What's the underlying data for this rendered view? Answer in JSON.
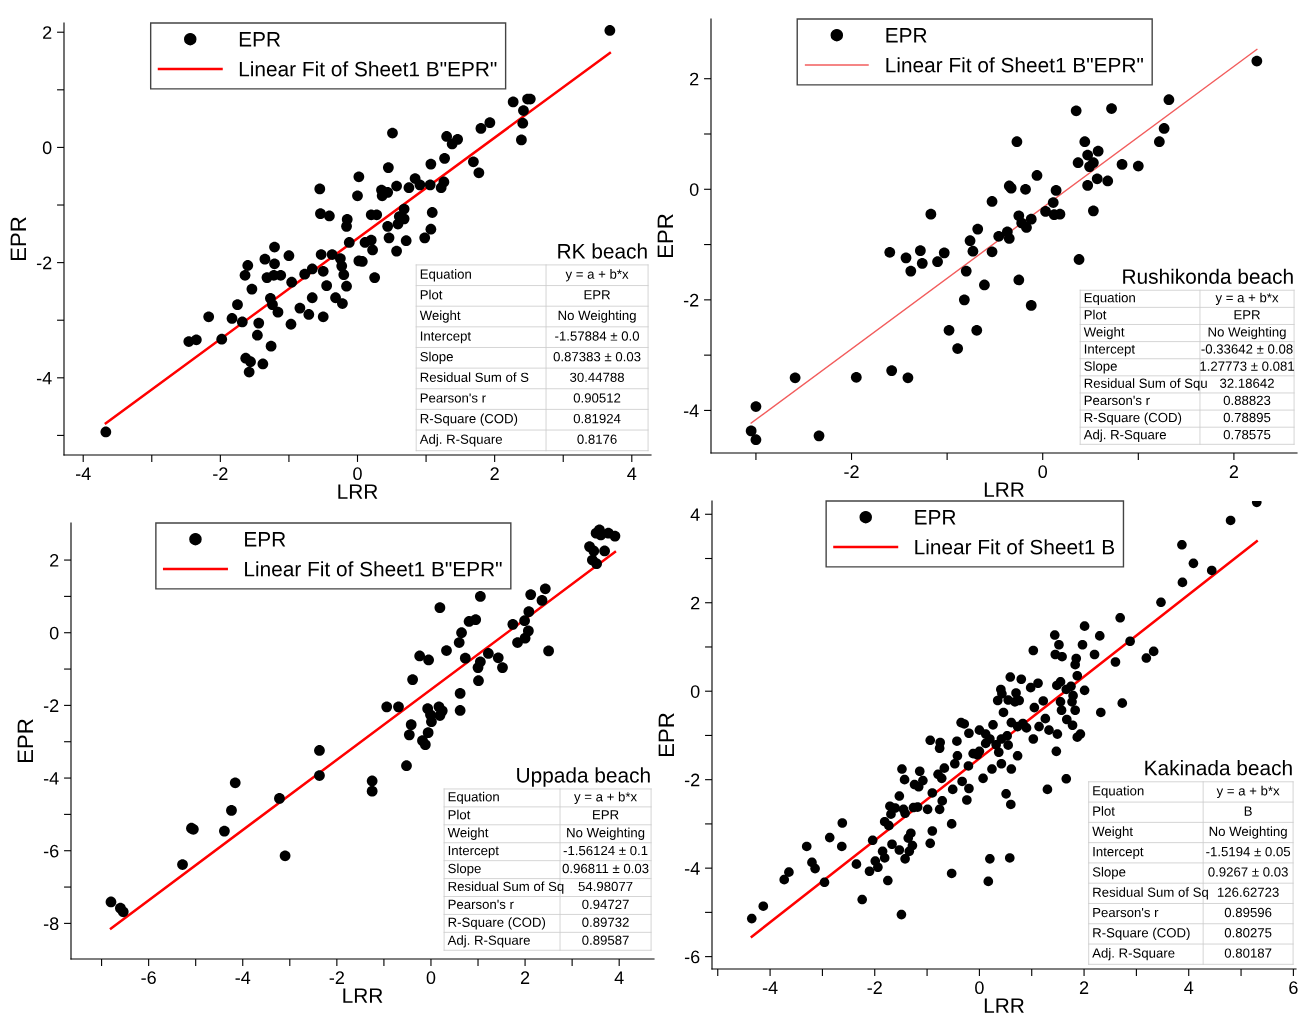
{
  "chart_data": [
    {
      "type": "scatter",
      "xlabel": "LRR",
      "ylabel": "EPR",
      "legend": "top",
      "grid": false,
      "xlim": [
        -4.28,
        4.28
      ],
      "ylim": [
        -5.34,
        2.16
      ],
      "xticks": [
        -4,
        {
          "value": -3,
          "label": null
        },
        -2,
        {
          "value": -1,
          "label": null
        },
        0,
        {
          "value": 1,
          "label": null
        },
        2,
        {
          "value": 3,
          "label": null
        },
        4
      ],
      "yticks": [
        {
          "value": -5,
          "label": null
        },
        -4,
        {
          "value": -3,
          "label": null
        },
        -2,
        {
          "value": -1,
          "label": null
        },
        0,
        {
          "value": 1,
          "label": null
        },
        2
      ],
      "annotations": [
        "RK beach",
        "Equation",
        "y = a + b*x",
        "Plot",
        "EPR",
        "Weight",
        "No Weighting",
        "Intercept",
        "-1.57884 ± 0.0",
        "Slope",
        "0.87383 ± 0.03",
        "Residual Sum of S",
        "30.44788",
        "Pearson's r",
        "0.90512",
        "R-Square (COD)",
        "0.81924",
        "Adj. R-Square",
        "0.8176"
      ],
      "series": [
        {
          "name": "EPR",
          "marker": "circle",
          "color": "#000000",
          "x": [
            -3.67,
            3.68,
            2.27,
            2.48,
            2.52,
            2.42,
            2.41,
            2.39,
            1.8,
            1.93,
            0.51,
            1.3,
            1.38,
            1.46,
            1.27,
            1.07,
            1.69,
            1.77,
            0.45,
            0.02,
            0.0,
            0.84,
            0.91,
            1.06,
            1.26,
            1.22,
            0.57,
            0.75,
            0.35,
            0.44,
            0.36,
            -0.55,
            -0.54,
            -0.41,
            -0.15,
            -0.16,
            0.2,
            0.28,
            0.68,
            0.61,
            0.68,
            0.59,
            1.09,
            1.07,
            0.98,
            0.44,
            0.46,
            0.71,
            0.57,
            -0.12,
            0.11,
            0.2,
            0.22,
            0.02,
            0.07,
            0.25,
            -0.53,
            -0.37,
            -0.25,
            -0.23,
            -0.2,
            -0.16,
            -0.45,
            -0.5,
            -0.66,
            -0.77,
            -0.96,
            -0.66,
            -0.32,
            -0.22,
            -0.84,
            -0.71,
            -0.5,
            -0.97,
            -1.21,
            -1.0,
            -1.21,
            -1.35,
            -1.6,
            -1.64,
            -1.32,
            -1.22,
            -1.12,
            -1.54,
            -1.27,
            -1.24,
            -1.16,
            -1.75,
            -1.83,
            -1.68,
            -1.44,
            -1.46,
            -1.26,
            -2.17,
            -1.98,
            -2.46,
            -2.35,
            -1.63,
            -1.56,
            -1.38,
            -1.58
          ],
          "values": [
            -4.94,
            2.03,
            0.79,
            0.84,
            0.84,
            0.64,
            0.42,
            0.13,
            0.33,
            0.43,
            0.25,
            0.19,
            0.06,
            0.14,
            -0.19,
            -0.29,
            -0.25,
            -0.44,
            -0.35,
            -0.51,
            -0.84,
            -0.54,
            -0.65,
            -0.65,
            -0.6,
            -0.7,
            -0.67,
            -0.7,
            -0.74,
            -0.78,
            -0.84,
            -0.72,
            -1.15,
            -1.19,
            -1.25,
            -1.37,
            -1.17,
            -1.17,
            -1.07,
            -1.2,
            -1.24,
            -1.33,
            -1.13,
            -1.42,
            -1.57,
            -1.37,
            -1.57,
            -1.62,
            -1.8,
            -1.65,
            -1.65,
            -1.61,
            -1.78,
            -1.97,
            -1.98,
            -2.26,
            -1.86,
            -1.86,
            -1.93,
            -2.06,
            -2.21,
            -2.41,
            -2.4,
            -2.15,
            -2.11,
            -2.2,
            -2.34,
            -2.61,
            -2.61,
            -2.71,
            -2.79,
            -2.9,
            -2.94,
            -3.07,
            -1.73,
            -1.88,
            -2.02,
            -1.94,
            -2.05,
            -2.22,
            -2.26,
            -2.22,
            -2.22,
            -2.46,
            -2.62,
            -2.73,
            -2.86,
            -2.73,
            -2.97,
            -3.03,
            -3.05,
            -3.26,
            -3.45,
            -2.94,
            -3.33,
            -3.37,
            -3.34,
            -3.66,
            -3.72,
            -3.76,
            -3.9
          ]
        },
        {
          "name": "Linear Fit of Sheet1 B\"EPR\"",
          "type": "line",
          "color": "#ff0000",
          "x": [
            -3.67,
            3.68
          ],
          "values": [
            -4.79,
            1.64
          ]
        }
      ]
    },
    {
      "type": "scatter",
      "xlabel": "LRR",
      "ylabel": "EPR",
      "legend": "top",
      "grid": false,
      "xlim": [
        -3.47,
        2.66
      ],
      "ylim": [
        -4.77,
        3.08
      ],
      "xticks": [
        {
          "value": -3,
          "label": null
        },
        -2,
        {
          "value": -1,
          "label": null
        },
        0,
        {
          "value": 1,
          "label": null
        },
        2
      ],
      "yticks": [
        -4,
        {
          "value": -3,
          "label": null
        },
        -2,
        {
          "value": -1,
          "label": null
        },
        0,
        {
          "value": 1,
          "label": null
        },
        2
      ],
      "annotations": [
        "Rushikonda beach",
        "Equation",
        "y = a + b*x",
        "Plot",
        "EPR",
        "Weight",
        "No Weighting",
        "Intercept",
        "-0.33642 ± 0.08",
        "Slope",
        "1.27773 ± 0.081",
        "Residual Sum of Squ",
        "32.18642",
        "Pearson's r",
        "0.88823",
        "R-Square (COD)",
        "0.78895",
        "Adj. R-Square",
        "0.78575"
      ],
      "series": [
        {
          "name": "EPR",
          "marker": "circle",
          "color": "#000000",
          "x": [
            2.24,
            1.32,
            1.27,
            1.22,
            0.72,
            0.35,
            0.44,
            0.47,
            0.58,
            0.53,
            0.49,
            0.37,
            0.83,
            1.0,
            0.57,
            0.68,
            0.47,
            0.53,
            0.38,
            -0.27,
            -0.06,
            -0.35,
            -0.33,
            -0.18,
            0.14,
            0.11,
            0.03,
            0.12,
            0.18,
            -0.25,
            -0.12,
            -0.22,
            -0.17,
            -0.37,
            -0.46,
            -0.35,
            -0.53,
            -0.68,
            -0.76,
            -0.73,
            -0.53,
            -0.8,
            -0.61,
            -0.25,
            -0.82,
            -0.12,
            -1.17,
            -1.6,
            -1.43,
            -1.28,
            -1.26,
            -1.38,
            -1.1,
            -1.03,
            -0.98,
            -0.69,
            -0.89,
            -2.59,
            -1.95,
            -1.58,
            -1.41,
            -3.0,
            -3.05,
            -3.0,
            -2.34
          ],
          "values": [
            2.32,
            1.62,
            1.1,
            0.86,
            1.46,
            1.42,
            0.86,
            0.62,
            0.69,
            0.48,
            0.41,
            0.48,
            0.45,
            0.42,
            0.19,
            0.15,
            0.07,
            -0.39,
            -1.27,
            0.86,
            0.25,
            0.06,
            0.02,
            0.0,
            -0.02,
            -0.24,
            -0.4,
            -0.46,
            -0.45,
            -0.48,
            -0.54,
            -0.61,
            -0.69,
            -0.77,
            -0.85,
            -0.89,
            -0.22,
            -0.72,
            -0.93,
            -1.12,
            -1.13,
            -1.48,
            -1.73,
            -1.64,
            -2.0,
            -2.1,
            -0.45,
            -1.14,
            -1.24,
            -1.11,
            -1.34,
            -1.48,
            -1.31,
            -1.15,
            -2.55,
            -2.55,
            -2.88,
            -3.41,
            -3.4,
            -3.28,
            -3.41,
            -3.93,
            -4.37,
            -4.53,
            -4.46
          ]
        },
        {
          "name": "Linear Fit of Sheet1 B\"EPR\"",
          "type": "line",
          "color": "#f25c5c",
          "x": [
            -3.05,
            2.24
          ],
          "values": [
            -4.23,
            2.53
          ]
        }
      ]
    },
    {
      "type": "scatter",
      "xlabel": "LRR",
      "ylabel": "EPR",
      "legend": "top",
      "grid": false,
      "xlim": [
        -7.65,
        4.74
      ],
      "ylim": [
        -8.98,
        3.02
      ],
      "xticks": [
        {
          "value": -7,
          "label": null
        },
        -6,
        {
          "value": -5,
          "label": null
        },
        -4,
        {
          "value": -3,
          "label": null
        },
        -2,
        {
          "value": -1,
          "label": null
        },
        0,
        {
          "value": 1,
          "label": null
        },
        2,
        {
          "value": 3,
          "label": null
        },
        4
      ],
      "yticks": [
        -8,
        {
          "value": -7,
          "label": null
        },
        -6,
        {
          "value": -5,
          "label": null
        },
        -4,
        {
          "value": -3,
          "label": null
        },
        -2,
        {
          "value": -1,
          "label": null
        },
        0,
        {
          "value": 1,
          "label": null
        },
        2
      ],
      "annotations": [
        "Uppada beach",
        "Equation",
        "y = a + b*x",
        "Plot",
        "EPR",
        "Weight",
        "No Weighting",
        "Intercept",
        "-1.56124 ± 0.1",
        "Slope",
        "0.96811 ± 0.03",
        "Residual Sum of Sq",
        "54.98077",
        "Pearson's r",
        "0.94727",
        "R-Square (COD)",
        "0.89732",
        "Adj. R-Square",
        "0.89587"
      ],
      "series": [
        {
          "name": "EPR",
          "marker": "circle",
          "color": "#000000",
          "x": [
            -6.8,
            -6.6,
            -6.54,
            -5.28,
            -5.09,
            -5.05,
            -4.39,
            -4.24,
            -4.16,
            -3.22,
            -3.1,
            -2.37,
            -2.37,
            -1.25,
            -1.25,
            -0.94,
            -0.69,
            -0.52,
            -0.39,
            -0.24,
            -0.05,
            -0.42,
            -0.46,
            -0.18,
            -0.12,
            -0.06,
            -0.07,
            0.01,
            -0.01,
            0.17,
            0.19,
            0.24,
            0.19,
            0.33,
            0.6,
            0.65,
            0.81,
            0.95,
            0.73,
            0.62,
            0.62,
            1.05,
            1.0,
            1.05,
            1.01,
            1.22,
            1.43,
            1.52,
            1.74,
            1.84,
            1.99,
            2.0,
            2.07,
            2.08,
            2.12,
            2.36,
            2.43,
            2.5,
            3.37,
            3.43,
            3.46,
            3.52,
            3.51,
            3.58,
            3.61,
            3.69,
            3.77,
            3.91
          ],
          "values": [
            -7.41,
            -7.58,
            -7.68,
            -6.38,
            -5.38,
            -5.41,
            -5.46,
            -4.89,
            -4.13,
            -4.56,
            -6.14,
            -3.24,
            -3.93,
            -4.08,
            -4.36,
            -2.04,
            -2.04,
            -3.66,
            -1.29,
            -0.64,
            -0.75,
            -2.53,
            -2.81,
            -2.97,
            -3.08,
            -2.75,
            -2.09,
            -2.45,
            -2.26,
            -2.04,
            -2.28,
            -2.15,
            0.69,
            -0.49,
            -0.27,
            0.0,
            0.31,
            0.36,
            -0.7,
            -1.67,
            -2.14,
            1.0,
            -0.96,
            -0.8,
            -1.32,
            -0.57,
            -0.69,
            -0.96,
            0.23,
            -0.27,
            0.33,
            -0.15,
            0.05,
            0.58,
            1.05,
            0.89,
            1.21,
            -0.5,
            2.37,
            2.0,
            2.25,
            1.9,
            2.74,
            2.83,
            2.69,
            2.25,
            2.74,
            2.66
          ]
        },
        {
          "name": "Linear Fit of Sheet1 B\"EPR\"",
          "type": "line",
          "color": "#ff0000",
          "x": [
            -6.8,
            3.91
          ],
          "values": [
            -8.14,
            2.22
          ]
        }
      ]
    },
    {
      "type": "scatter",
      "xlabel": "LRR",
      "ylabel": "EPR",
      "legend": "top",
      "grid": false,
      "xlim": [
        -5.11,
        6.05
      ],
      "ylim": [
        -6.28,
        4.3
      ],
      "xticks": [
        {
          "value": -5,
          "label": null
        },
        -4,
        {
          "value": -3,
          "label": null
        },
        -2,
        {
          "value": -1,
          "label": null
        },
        0,
        {
          "value": 1,
          "label": null
        },
        2,
        {
          "value": 3,
          "label": null
        },
        4,
        {
          "value": 5,
          "label": null
        },
        6
      ],
      "yticks": [
        -6,
        {
          "value": -5,
          "label": null
        },
        -4,
        {
          "value": -3,
          "label": null
        },
        -2,
        {
          "value": -1,
          "label": null
        },
        0,
        {
          "value": 1,
          "label": null
        },
        2,
        {
          "value": 3,
          "label": null
        },
        4
      ],
      "annotations": [
        "Kakinada beach",
        "Equation",
        "y = a + b*x",
        "Plot",
        "B",
        "Weight",
        "No Weighting",
        "Intercept",
        "-1.5194 ± 0.05",
        "Slope",
        "0.9267 ± 0.03",
        "Residual Sum of Sq",
        "126.62723",
        "Pearson's r",
        "0.89596",
        "R-Square (COD)",
        "0.80275",
        "Adj. R-Square",
        "0.80187"
      ],
      "series": [
        {
          "name": "EPR",
          "marker": "circle",
          "color": "#000000",
          "x": [
            5.3,
            4.8,
            3.87,
            3.88,
            4.09,
            4.44,
            3.47,
            2.69,
            2.88,
            3.33,
            3.19,
            2.6,
            2.73,
            2.32,
            2.01,
            2.3,
            2.2,
            1.97,
            2.01,
            1.44,
            1.52,
            1.45,
            1.58,
            1.85,
            1.83,
            1.87,
            1.03,
            1.48,
            1.55,
            1.66,
            1.75,
            1.79,
            1.77,
            1.83,
            1.57,
            1.55,
            1.67,
            1.78,
            1.93,
            1.87,
            1.49,
            1.47,
            1.66,
            1.3,
            1.33,
            1.14,
            1.26,
            1.22,
            1.05,
            1.03,
            0.83,
            0.9,
            1.12,
            0.98,
            0.8,
            0.59,
            0.41,
            0.43,
            0.35,
            0.55,
            0.76,
            0.68,
            0.7,
            0.46,
            0.61,
            0.73,
            0.73,
            0.55,
            0.53,
            0.42,
            0.37,
            0.42,
            0.61,
            0.51,
            0.6,
            0.58,
            0.2,
            0.17,
            0.26,
            0.12,
            0.2,
            0.32,
            0.12,
            0.24,
            0.07,
            0.0,
            -0.04,
            -0.12,
            0.0,
            -0.2,
            -0.29,
            -0.35,
            -0.21,
            -0.2,
            -0.24,
            -0.33,
            -0.47,
            -0.42,
            -0.43,
            -0.51,
            -0.53,
            -0.53,
            -0.67,
            -0.72,
            -0.79,
            -0.71,
            -0.76,
            -0.75,
            -0.76,
            -0.94,
            -0.9,
            -0.9,
            -0.94,
            -0.99,
            -1.08,
            -1.18,
            -1.14,
            -1.16,
            -1.24,
            -1.26,
            -1.28,
            -1.31,
            -1.36,
            -1.48,
            -1.43,
            -1.45,
            -1.42,
            -1.53,
            -1.61,
            -1.69,
            -1.73,
            -1.81,
            -1.71,
            -1.42,
            -1.34,
            -1.53,
            -1.67,
            -1.81,
            -1.85,
            -1.75,
            -1.49,
            -2.04,
            -1.99,
            -1.94,
            -2.1,
            -2.24,
            -2.35,
            -2.62,
            -2.63,
            -2.86,
            -2.96,
            -3.3,
            -3.2,
            -3.14,
            -3.64,
            -3.73,
            -4.13,
            -4.35
          ],
          "values": [
            4.27,
            3.86,
            3.31,
            2.46,
            2.89,
            2.73,
            2.01,
            1.66,
            1.13,
            0.9,
            0.75,
            0.66,
            -0.27,
            -0.48,
            1.47,
            1.25,
            0.83,
            1.05,
            0.02,
            1.27,
            1.05,
            0.83,
            0.78,
            0.74,
            0.6,
            0.35,
            0.92,
            0.13,
            0.21,
            0.04,
            0.11,
            -0.1,
            -0.24,
            -0.43,
            -0.43,
            -0.24,
            -0.64,
            -0.77,
            -0.97,
            -1.04,
            -0.97,
            -1.36,
            -1.98,
            -2.22,
            -0.88,
            -0.8,
            -0.62,
            -0.22,
            -0.37,
            -1.08,
            -0.73,
            -0.83,
            0.18,
            0.08,
            0.27,
            0.32,
            0.04,
            -0.06,
            -0.21,
            -0.2,
            -0.21,
            -0.24,
            -0.04,
            -0.48,
            -0.71,
            -0.8,
            -1.46,
            -1.22,
            -1.01,
            -1.08,
            -1.38,
            -1.64,
            -1.76,
            -2.32,
            -2.56,
            -3.77,
            -3.79,
            -4.3,
            -0.76,
            -0.97,
            -1.08,
            -1.21,
            -1.18,
            -1.76,
            -1.97,
            -1.36,
            -1.44,
            -1.41,
            -0.88,
            -0.95,
            -0.74,
            -0.71,
            -1.69,
            -2.2,
            -2.46,
            -2.04,
            -1.64,
            -1.46,
            -1.13,
            -2.22,
            -3.0,
            -4.12,
            -1.74,
            -1.97,
            -1.88,
            -2.48,
            -2.67,
            -1.16,
            -1.29,
            -1.11,
            -2.3,
            -3.16,
            -3.44,
            -2.67,
            -2.02,
            -2.62,
            -1.81,
            -2.16,
            -2.11,
            -2.63,
            -3.49,
            -3.21,
            -3.32,
            -1.76,
            -2.0,
            -2.67,
            -2.76,
            -2.37,
            -2.64,
            -2.78,
            -3.04,
            -2.95,
            -2.6,
            -3.79,
            -3.62,
            -3.59,
            -3.46,
            -3.77,
            -3.62,
            -4.28,
            -5.05,
            -3.37,
            -3.84,
            -3.98,
            -4.07,
            -4.71,
            -3.91,
            -2.98,
            -3.51,
            -3.31,
            -4.32,
            -3.51,
            -3.87,
            -4.01,
            -4.09,
            -4.26,
            -4.86,
            -5.14
          ]
        },
        {
          "name": "Linear Fit of Sheet1 B",
          "type": "line",
          "color": "#ff0000",
          "x": [
            -4.35,
            5.3
          ],
          "values": [
            -5.55,
            3.39
          ]
        }
      ]
    }
  ]
}
